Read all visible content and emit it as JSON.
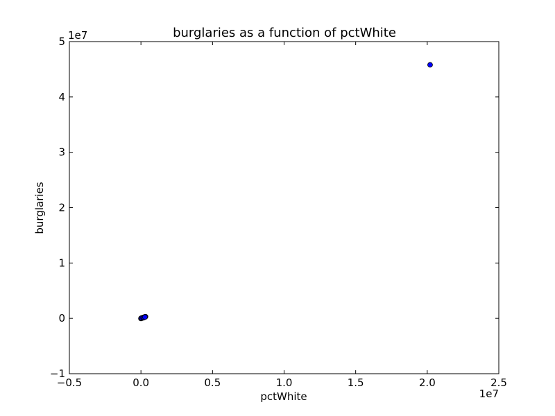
{
  "chart_data": {
    "type": "scatter",
    "title": "burglaries as a function of pctWhite",
    "xlabel": "pctWhite",
    "ylabel": "burglaries",
    "xlim": [
      -5000000,
      25000000
    ],
    "ylim": [
      -10000000,
      50000000
    ],
    "x_offset_label": "1e7",
    "y_offset_label": "1e7",
    "x_ticks": [
      -5000000,
      0,
      5000000,
      10000000,
      15000000,
      20000000,
      25000000
    ],
    "x_tick_labels": [
      "−0.5",
      "0.0",
      "0.5",
      "1.0",
      "1.5",
      "2.0",
      "2.5"
    ],
    "y_ticks": [
      -10000000,
      0,
      10000000,
      20000000,
      30000000,
      40000000,
      50000000
    ],
    "y_tick_labels": [
      "−1",
      "0",
      "1",
      "2",
      "3",
      "4",
      "5"
    ],
    "grid": false,
    "marker_color": "#0000ff",
    "marker_edge_color": "#000000",
    "series": [
      {
        "x": [
          20200000,
          320000,
          250000,
          180000,
          120000,
          80000,
          50000,
          30000,
          10000,
          0,
          20000,
          60000,
          150000,
          200000,
          280000
        ],
        "y": [
          45800000,
          300000,
          250000,
          180000,
          120000,
          80000,
          40000,
          20000,
          5000,
          -20000,
          10000,
          50000,
          100000,
          150000,
          220000
        ]
      }
    ]
  }
}
